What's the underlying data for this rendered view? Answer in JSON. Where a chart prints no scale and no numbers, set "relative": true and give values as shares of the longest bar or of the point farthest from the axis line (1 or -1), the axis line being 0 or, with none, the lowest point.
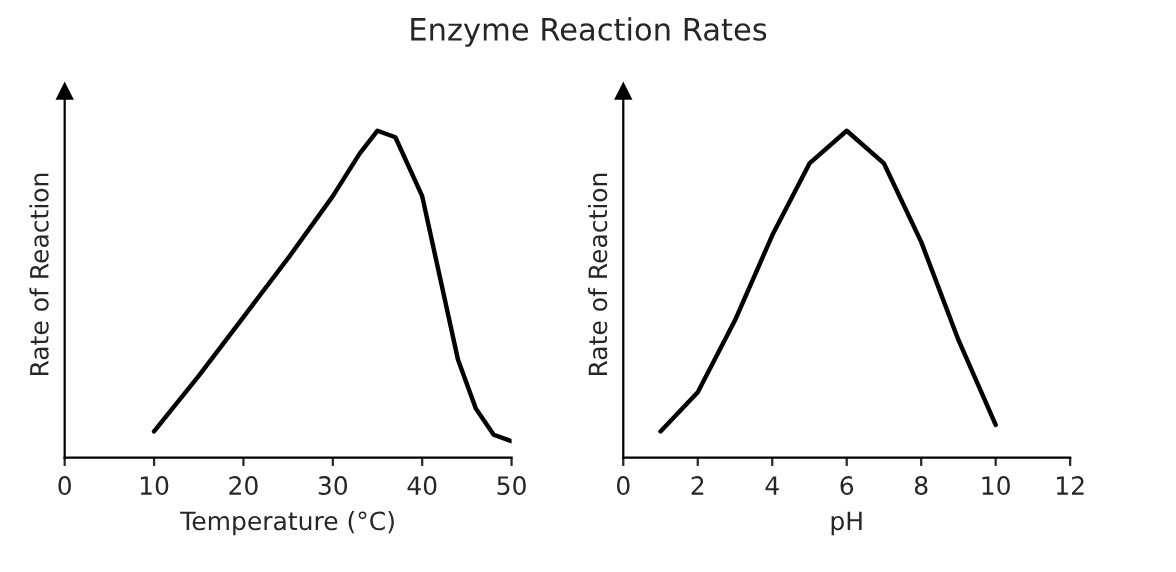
{
  "chart_data": [
    {
      "type": "line",
      "title": "Enzyme Reaction Rates",
      "xlabel": "Temperature (°C)",
      "ylabel": "Rate of Reaction",
      "relative": true,
      "xlim": [
        0,
        50
      ],
      "xticks": [
        0,
        10,
        20,
        30,
        40,
        50
      ],
      "grid": false,
      "tick_labels": "x",
      "series": [
        {
          "color": "#000000",
          "x": [
            10,
            15,
            20,
            25,
            30,
            33,
            35,
            37,
            40,
            42,
            44,
            46,
            48,
            50
          ],
          "values": [
            0.08,
            0.25,
            0.43,
            0.61,
            0.8,
            0.93,
            1.0,
            0.98,
            0.8,
            0.55,
            0.3,
            0.15,
            0.07,
            0.05
          ]
        }
      ]
    },
    {
      "type": "line",
      "xlabel": "pH",
      "ylabel": "Rate of Reaction",
      "relative": true,
      "xlim": [
        0,
        12
      ],
      "xticks": [
        0,
        2,
        4,
        6,
        8,
        10,
        12
      ],
      "grid": false,
      "tick_labels": "x",
      "series": [
        {
          "color": "#000000",
          "x": [
            1,
            2,
            3,
            4,
            5,
            6,
            7,
            8,
            9,
            10
          ],
          "values": [
            0.08,
            0.2,
            0.42,
            0.68,
            0.9,
            1.0,
            0.9,
            0.66,
            0.36,
            0.1
          ]
        }
      ]
    }
  ]
}
